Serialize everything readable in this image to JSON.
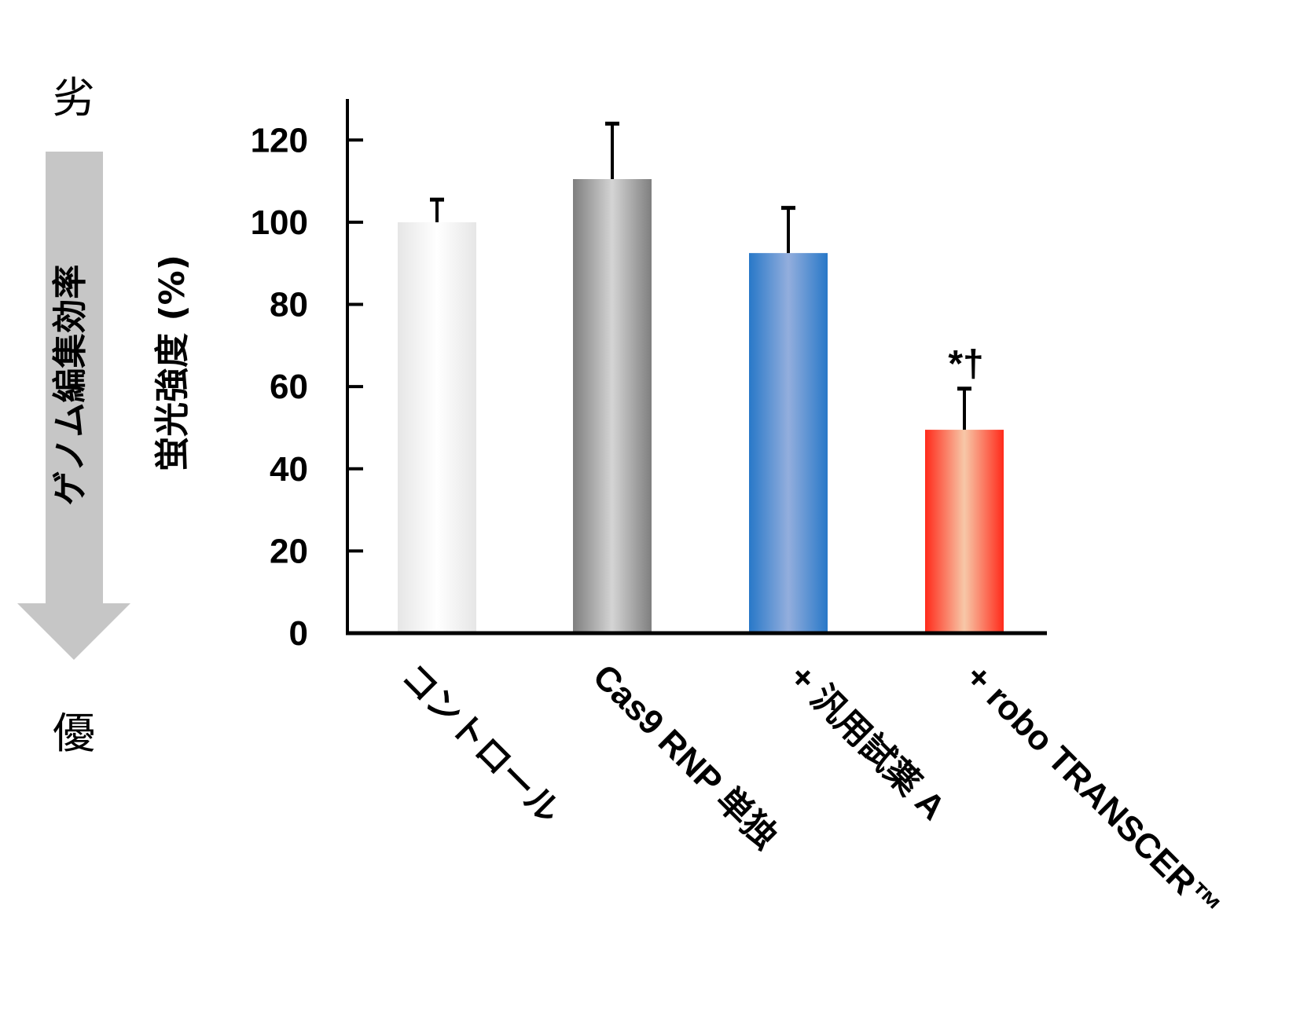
{
  "chart_data": {
    "type": "bar",
    "categories": [
      "コントロール",
      "Cas9 RNP 単独",
      "+ 汎用試薬 A",
      "+ robo TRANSCER™"
    ],
    "values": [
      100,
      110.5,
      92.5,
      49.5
    ],
    "errors": [
      5.5,
      13.5,
      11,
      10
    ],
    "ylabel": "蛍光強度 (%)",
    "xlabel": "",
    "ylim": [
      0,
      130
    ],
    "yticks": [
      0,
      20,
      40,
      60,
      80,
      100,
      120
    ],
    "annotation": {
      "category_index": 3,
      "text": "*†"
    },
    "bar_colors": [
      {
        "edge": "#e6e6e6",
        "center": "#ffffff"
      },
      {
        "edge": "#7f7f7f",
        "center": "#d4d4d4"
      },
      {
        "edge": "#2878c8",
        "center": "#93aedd"
      },
      {
        "edge": "#ff2a1a",
        "center": "#f7c8a8"
      }
    ],
    "grid": false,
    "legend": "none"
  },
  "side_scale": {
    "top_label": "劣",
    "bottom_label": "優",
    "arrow_label": "ゲノム編集効率",
    "arrow_color": "#c6c6c6"
  }
}
